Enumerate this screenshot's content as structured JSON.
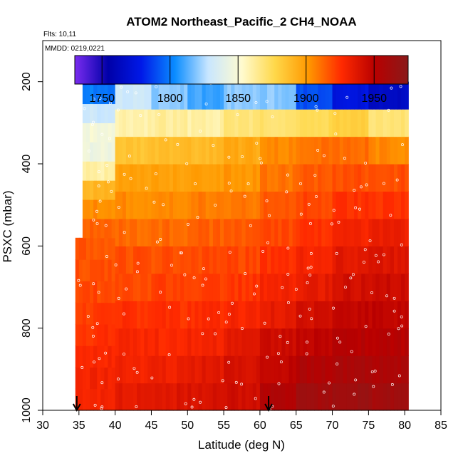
{
  "chart_data": {
    "type": "heatmap",
    "title": "ATOM2 Northeast_Pacific_2 CH4_NOAA",
    "flights_label": "Flts: 10,11",
    "date_label": "MMDD: 0219,0221",
    "xlabel": "Latitude (deg N)",
    "ylabel": "PSXC (mbar)",
    "xlim": [
      30,
      85
    ],
    "ylim": [
      1000,
      100
    ],
    "x_ticks": [
      30,
      35,
      40,
      45,
      50,
      55,
      60,
      65,
      70,
      75,
      80,
      85
    ],
    "y_ticks": [
      200,
      400,
      600,
      800,
      1000
    ],
    "colorbar": {
      "min": 1730,
      "max": 1975,
      "ticks": [
        1750,
        1800,
        1850,
        1900,
        1950
      ],
      "palette": [
        "#7a2cf0",
        "#0000a8",
        "#0019e8",
        "#0a8cff",
        "#c8e6ff",
        "#fffbd0",
        "#ffd84a",
        "#ff9900",
        "#ff2a00",
        "#b80000",
        "#8a1a1a"
      ]
    },
    "arrows_at_latitude": [
      34.7,
      61.2
    ],
    "profiles": [
      {
        "lat_range": [
          34.5,
          40.0
        ],
        "pressure_range": [
          580,
          1000
        ],
        "values_bottom_to_top": [
          1930,
          1930,
          1928,
          1925,
          1922,
          1920,
          1918,
          1917
        ]
      },
      {
        "lat_range": [
          35.5,
          40.0
        ],
        "pressure_range": [
          160,
          580
        ],
        "values_bottom_to_top": [
          1915,
          1905,
          1890,
          1860,
          1845,
          1848,
          1830,
          1800,
          1760
        ]
      },
      {
        "lat_range": [
          40.0,
          45.0
        ],
        "pressure_range": [
          200,
          1000
        ],
        "values_bottom_to_top": [
          1935,
          1930,
          1928,
          1925,
          1920,
          1918,
          1912,
          1905,
          1898,
          1885,
          1860,
          1830
        ]
      },
      {
        "lat_range": [
          45.0,
          50.0
        ],
        "pressure_range": [
          200,
          1000
        ],
        "values_bottom_to_top": [
          1938,
          1932,
          1928,
          1925,
          1921,
          1918,
          1912,
          1906,
          1898,
          1887,
          1862,
          1820
        ]
      },
      {
        "lat_range": [
          50.0,
          55.0
        ],
        "pressure_range": [
          200,
          1000
        ],
        "values_bottom_to_top": [
          1940,
          1936,
          1930,
          1926,
          1922,
          1919,
          1914,
          1908,
          1900,
          1888,
          1860,
          1810
        ]
      },
      {
        "lat_range": [
          55.0,
          60.0
        ],
        "pressure_range": [
          200,
          1000
        ],
        "values_bottom_to_top": [
          1943,
          1940,
          1935,
          1929,
          1924,
          1920,
          1915,
          1909,
          1902,
          1895,
          1868,
          1820
        ]
      },
      {
        "lat_range": [
          60.0,
          65.0
        ],
        "pressure_range": [
          200,
          1000
        ],
        "values_bottom_to_top": [
          1955,
          1948,
          1943,
          1935,
          1930,
          1925,
          1920,
          1915,
          1910,
          1905,
          1870,
          1820
        ]
      },
      {
        "lat_range": [
          65.0,
          70.0
        ],
        "pressure_range": [
          200,
          1000
        ],
        "values_bottom_to_top": [
          1962,
          1955,
          1948,
          1942,
          1935,
          1930,
          1925,
          1920,
          1915,
          1910,
          1875,
          1790
        ]
      },
      {
        "lat_range": [
          70.0,
          75.0
        ],
        "pressure_range": [
          200,
          1000
        ],
        "values_bottom_to_top": [
          1965,
          1958,
          1952,
          1948,
          1942,
          1936,
          1930,
          1925,
          1918,
          1912,
          1880,
          1775
        ]
      },
      {
        "lat_range": [
          75.0,
          80.5
        ],
        "pressure_range": [
          200,
          1000
        ],
        "values_bottom_to_top": [
          1962,
          1956,
          1952,
          1948,
          1944,
          1938,
          1932,
          1925,
          1918,
          1905,
          1870,
          1765
        ]
      }
    ]
  }
}
